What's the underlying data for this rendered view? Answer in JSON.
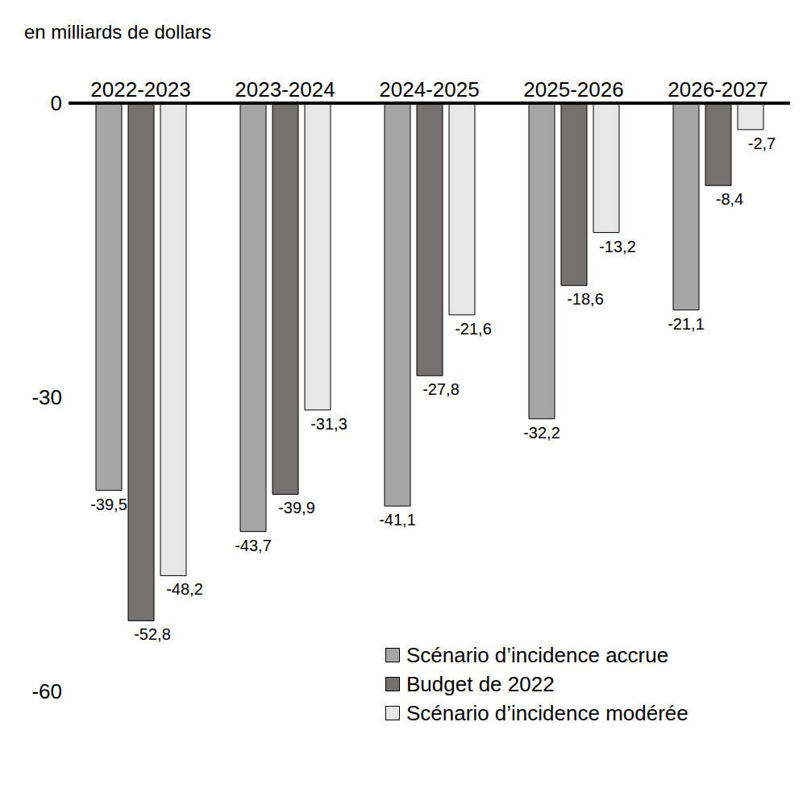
{
  "chart_data": {
    "type": "bar",
    "y_label": "en milliards de dollars",
    "categories": [
      "2022-2023",
      "2023-2024",
      "2024-2025",
      "2025-2026",
      "2026-2027"
    ],
    "series": [
      {
        "name": "Scénario d’incidence accrue",
        "color": "#a6a6a6",
        "values": [
          -39.5,
          -43.7,
          -41.1,
          -32.2,
          -21.1
        ],
        "value_labels": [
          "-39,5",
          "-43,7",
          "-41,1",
          "-32,2",
          "-21,1"
        ]
      },
      {
        "name": "Budget de 2022",
        "color": "#767171",
        "values": [
          -52.8,
          -39.9,
          -27.8,
          -18.6,
          -8.4
        ],
        "value_labels": [
          "-52,8",
          "-39,9",
          "-27,8",
          "-18,6",
          "-8,4"
        ]
      },
      {
        "name": "Scénario d’incidence modérée",
        "color": "#e7e6e6",
        "values": [
          -48.2,
          -31.3,
          -21.6,
          -13.2,
          -2.7
        ],
        "value_labels": [
          "-48,2",
          "-31,3",
          "-21,6",
          "-13,2",
          "-2,7"
        ]
      }
    ],
    "ylim": [
      -60,
      0
    ],
    "yticks": [
      0,
      -30,
      -60
    ],
    "grid": false,
    "legend": "lower right",
    "data_labels": true
  }
}
